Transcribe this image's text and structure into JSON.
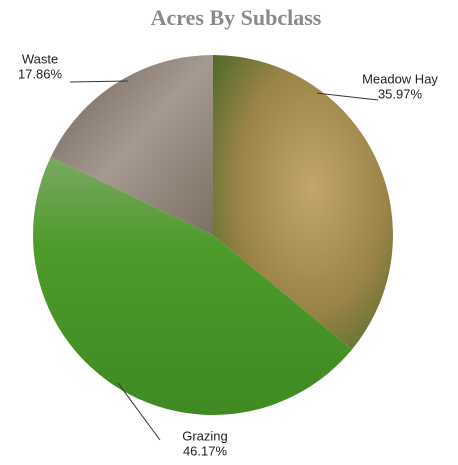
{
  "chart_data": {
    "type": "pie",
    "title": "Acres By Subclass",
    "categories": [
      "Meadow Hay",
      "Grazing",
      "Waste"
    ],
    "values": [
      35.97,
      46.17,
      17.86
    ],
    "value_labels": [
      "35.97%",
      "46.17%",
      "17.86%"
    ],
    "colors": [
      "#a8934f",
      "#4f9a2c",
      "#8c7f74"
    ]
  }
}
